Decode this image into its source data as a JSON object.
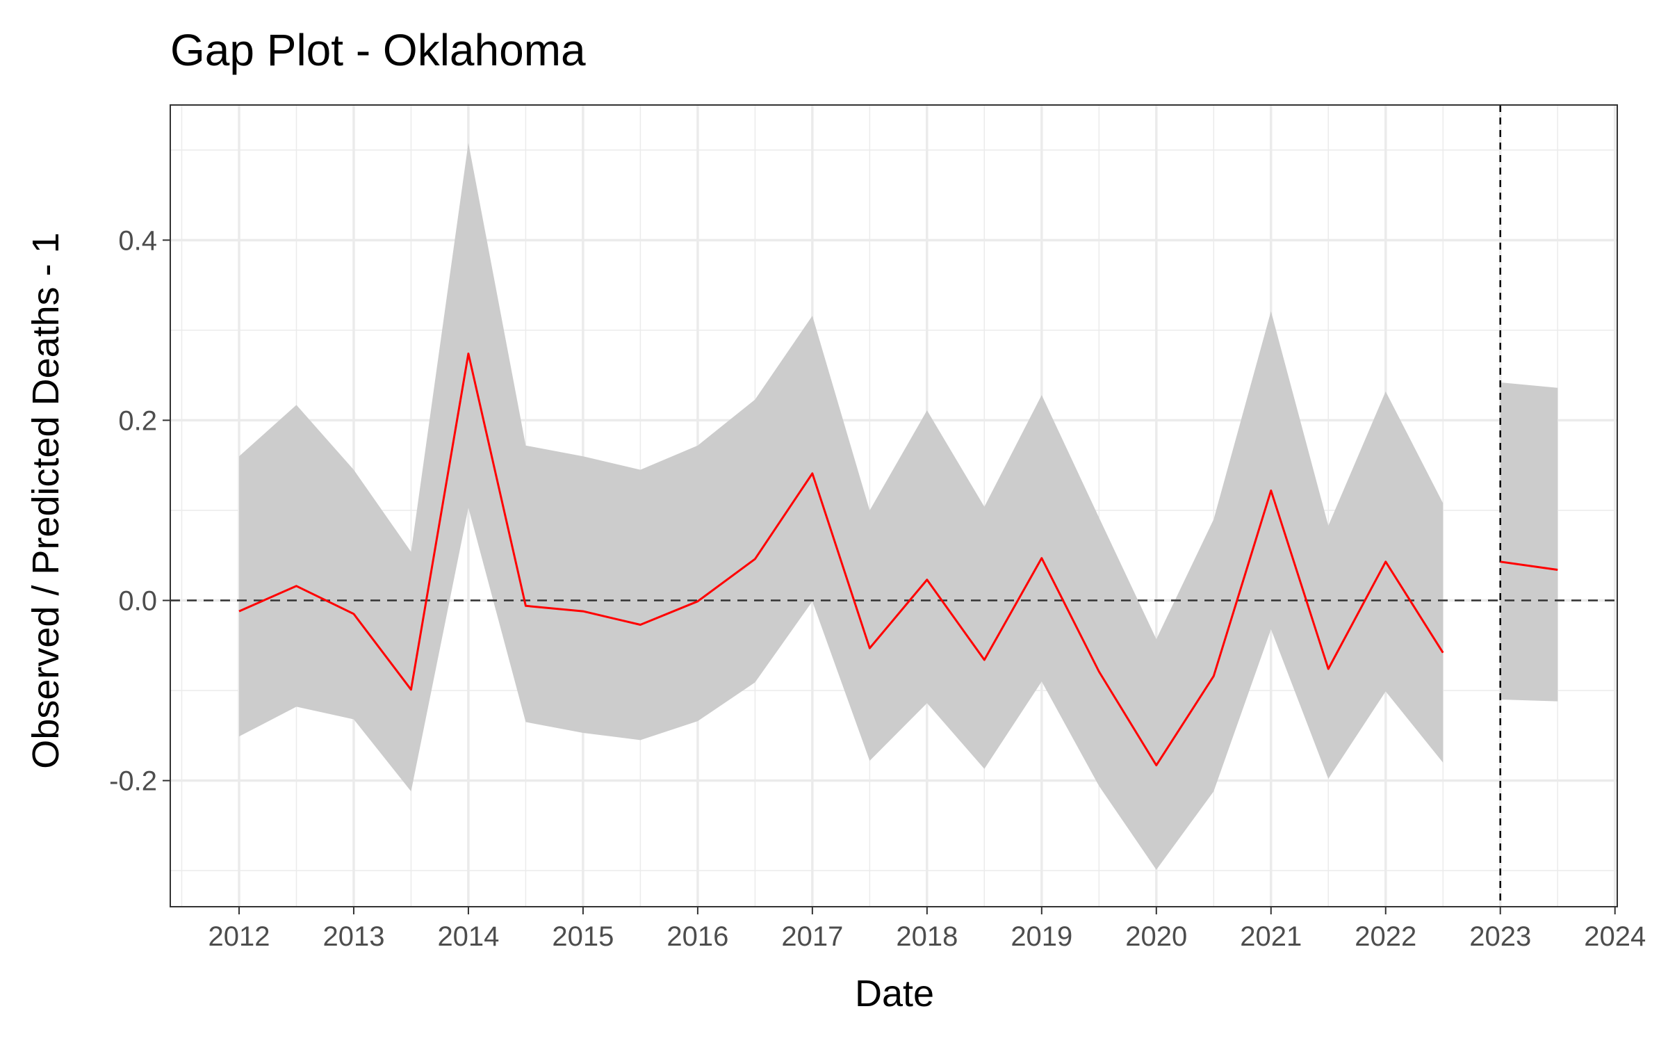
{
  "chart_data": {
    "type": "line",
    "title": "Gap Plot - Oklahoma",
    "xlabel": "Date",
    "ylabel": "Observed / Predicted Deaths - 1",
    "xlim": [
      2011.4,
      2024.02
    ],
    "ylim": [
      -0.34,
      0.55
    ],
    "x_ticks": [
      "2012",
      "2013",
      "2014",
      "2015",
      "2016",
      "2017",
      "2018",
      "2019",
      "2020",
      "2021",
      "2022",
      "2023",
      "2024"
    ],
    "y_ticks": [
      "-0.2",
      "0.0",
      "0.2",
      "0.4"
    ],
    "grid": true,
    "reference_hline": 0,
    "reference_vline": 2023,
    "series": [
      {
        "segment": "pre-period",
        "x": [
          2012.0,
          2012.5,
          2013.0,
          2013.5,
          2014.0,
          2014.5,
          2015.0,
          2015.5,
          2016.0,
          2016.5,
          2017.0,
          2017.5,
          2018.0,
          2018.5,
          2019.0,
          2019.5,
          2020.0,
          2020.5,
          2021.0,
          2021.5,
          2022.0,
          2022.5
        ],
        "values": [
          -0.012,
          0.016,
          -0.015,
          -0.099,
          0.274,
          -0.006,
          -0.012,
          -0.027,
          -0.001,
          0.046,
          0.141,
          -0.053,
          0.023,
          -0.066,
          0.047,
          -0.079,
          -0.183,
          -0.084,
          0.122,
          -0.076,
          0.043,
          -0.058
        ],
        "lower": [
          -0.151,
          -0.118,
          -0.132,
          -0.212,
          0.103,
          -0.135,
          -0.147,
          -0.155,
          -0.134,
          -0.091,
          -0.001,
          -0.178,
          -0.114,
          -0.187,
          -0.09,
          -0.206,
          -0.299,
          -0.212,
          -0.032,
          -0.198,
          -0.101,
          -0.18
        ],
        "upper": [
          0.16,
          0.217,
          0.145,
          0.054,
          0.508,
          0.172,
          0.16,
          0.145,
          0.172,
          0.223,
          0.316,
          0.1,
          0.211,
          0.104,
          0.228,
          0.092,
          -0.043,
          0.09,
          0.321,
          0.083,
          0.232,
          0.108
        ]
      },
      {
        "segment": "post-period",
        "x": [
          2023.0,
          2023.5
        ],
        "values": [
          0.043,
          0.034
        ],
        "lower": [
          -0.11,
          -0.112
        ],
        "upper": [
          0.242,
          0.236
        ]
      }
    ],
    "colors": {
      "line": "#ff0000",
      "band": "#cccccc",
      "grid": "#ebebeb",
      "reference": "#333333",
      "panel_border": "#333333"
    }
  }
}
